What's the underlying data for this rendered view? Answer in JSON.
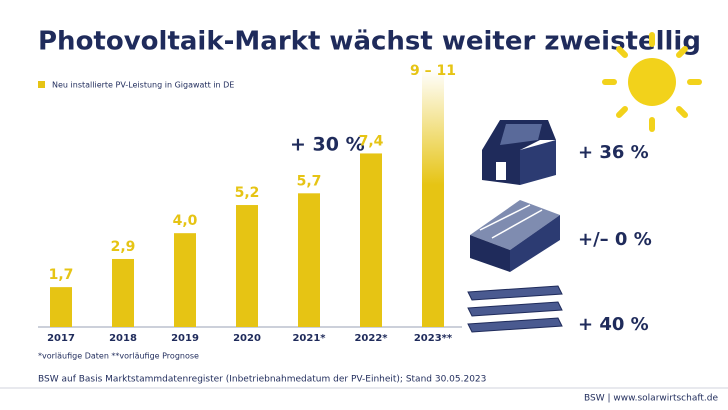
{
  "chart_data": {
    "type": "bar",
    "title": "Photovoltaik-Markt wächst weiter zweistellig",
    "categories": [
      "2017",
      "2018",
      "2019",
      "2020",
      "2021*",
      "2022*",
      "2023**"
    ],
    "series": [
      {
        "name": "Neu installierte PV-Leistung in Gigawatt in DE",
        "color": "#e6c414",
        "values": [
          1.7,
          2.9,
          4.0,
          5.2,
          5.7,
          7.4,
          11
        ],
        "value_labels": [
          "1,7",
          "2,9",
          "4,0",
          "5,2",
          "5,7",
          "7,4",
          "9 – 11"
        ]
      }
    ],
    "annotations": [
      "+ 30 %",
      "+ 36 %",
      "+/– 0 %",
      "+ 40 %"
    ],
    "footnote": "*vorläufige Daten  **vorläufige Prognose",
    "source": "BSW auf Basis Marktstammdatenregister (Inbetriebnahmedatum der PV-Einheit); Stand 30.05.2023",
    "footer": "BSW | www.solarwirtschaft.de"
  }
}
